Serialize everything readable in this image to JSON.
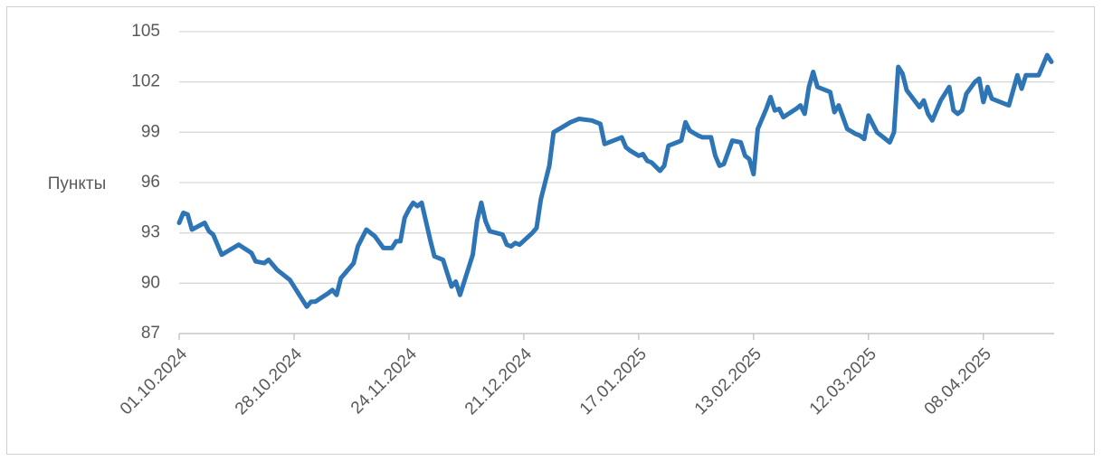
{
  "chart_data": {
    "type": "line",
    "y_label": "Пункты",
    "color": "#2e75b6",
    "grid": true,
    "x": [
      "01.10.2024",
      "02.10.2024",
      "03.10.2024",
      "04.10.2024",
      "07.10.2024",
      "08.10.2024",
      "09.10.2024",
      "11.10.2024",
      "15.10.2024",
      "18.10.2024",
      "19.10.2024",
      "21.10.2024",
      "22.10.2024",
      "24.10.2024",
      "25.10.2024",
      "27.10.2024",
      "29.10.2024",
      "31.10.2024",
      "01.11.2024",
      "02.11.2024",
      "05.11.2024",
      "06.11.2024",
      "07.11.2024",
      "08.11.2024",
      "11.11.2024",
      "12.11.2024",
      "14.11.2024",
      "16.11.2024",
      "18.11.2024",
      "20.11.2024",
      "21.11.2024",
      "22.11.2024",
      "23.11.2024",
      "24.11.2024",
      "25.11.2024",
      "26.11.2024",
      "27.11.2024",
      "29.11.2024",
      "30.11.2024",
      "02.12.2024",
      "04.12.2024",
      "05.12.2024",
      "06.12.2024",
      "09.12.2024",
      "10.12.2024",
      "11.12.2024",
      "12.12.2024",
      "13.12.2024",
      "16.12.2024",
      "17.12.2024",
      "18.12.2024",
      "19.12.2024",
      "20.12.2024",
      "23.12.2024",
      "24.12.2024",
      "25.12.2024",
      "27.12.2024",
      "28.12.2024",
      "30.12.2024",
      "01.01.2025",
      "03.01.2025",
      "06.01.2025",
      "08.01.2025",
      "09.01.2025",
      "12.01.2025",
      "13.01.2025",
      "14.01.2025",
      "15.01.2025",
      "17.01.2025",
      "18.01.2025",
      "19.01.2025",
      "20.01.2025",
      "22.01.2025",
      "23.01.2025",
      "24.01.2025",
      "26.01.2025",
      "27.01.2025",
      "28.01.2025",
      "29.01.2025",
      "31.01.2025",
      "01.02.2025",
      "03.02.2025",
      "04.02.2025",
      "05.02.2025",
      "06.02.2025",
      "08.02.2025",
      "10.02.2025",
      "11.02.2025",
      "12.02.2025",
      "13.02.2025",
      "14.02.2025",
      "16.02.2025",
      "17.02.2025",
      "18.02.2025",
      "19.02.2025",
      "20.02.2025",
      "23.02.2025",
      "24.02.2025",
      "25.02.2025",
      "26.02.2025",
      "27.02.2025",
      "28.02.2025",
      "03.03.2025",
      "04.03.2025",
      "05.03.2025",
      "07.03.2025",
      "09.03.2025",
      "10.03.2025",
      "11.03.2025",
      "12.03.2025",
      "14.03.2025",
      "17.03.2025",
      "18.03.2025",
      "19.03.2025",
      "20.03.2025",
      "21.03.2025",
      "24.03.2025",
      "25.03.2025",
      "26.03.2025",
      "27.03.2025",
      "29.03.2025",
      "31.03.2025",
      "01.04.2025",
      "02.04.2025",
      "03.04.2025",
      "04.04.2025",
      "06.04.2025",
      "07.04.2025",
      "08.04.2025",
      "09.04.2025",
      "10.04.2025",
      "13.04.2025",
      "14.04.2025",
      "16.04.2025",
      "17.04.2025",
      "18.04.2025",
      "21.04.2025",
      "22.04.2025",
      "23.04.2025",
      "24.04.2025"
    ],
    "values": [
      93.6,
      94.2,
      94.1,
      93.2,
      93.6,
      93.1,
      92.9,
      91.7,
      92.3,
      91.8,
      91.3,
      91.2,
      91.4,
      90.8,
      90.6,
      90.2,
      89.4,
      88.6,
      88.9,
      88.9,
      89.4,
      89.6,
      89.3,
      90.3,
      91.2,
      92.2,
      93.2,
      92.8,
      92.1,
      92.1,
      92.5,
      92.5,
      93.9,
      94.4,
      94.8,
      94.6,
      94.8,
      92.6,
      91.6,
      91.4,
      89.8,
      90.1,
      89.3,
      91.7,
      93.7,
      94.8,
      93.7,
      93.1,
      92.9,
      92.3,
      92.2,
      92.4,
      92.3,
      93.0,
      93.3,
      95.0,
      97.0,
      99.0,
      99.3,
      99.6,
      99.8,
      99.7,
      99.5,
      98.3,
      98.6,
      98.7,
      98.1,
      97.9,
      97.6,
      97.7,
      97.3,
      97.2,
      96.7,
      97.0,
      98.2,
      98.4,
      98.5,
      99.6,
      99.1,
      98.8,
      98.7,
      98.7,
      97.6,
      97.0,
      97.1,
      98.5,
      98.4,
      97.6,
      97.4,
      96.5,
      99.2,
      100.4,
      101.1,
      100.3,
      100.4,
      99.9,
      100.4,
      100.6,
      100.1,
      101.7,
      102.6,
      101.7,
      101.4,
      100.2,
      100.6,
      99.2,
      98.9,
      98.8,
      98.6,
      100.0,
      99.0,
      98.4,
      99.0,
      102.9,
      102.5,
      101.5,
      100.5,
      100.9,
      100.1,
      99.7,
      100.9,
      101.7,
      100.3,
      100.1,
      100.3,
      101.3,
      102.0,
      102.2,
      100.8,
      101.7,
      101.0,
      100.7,
      100.6,
      102.4,
      101.6,
      102.4,
      102.4,
      103.0,
      103.6,
      103.2
    ],
    "xlim": [
      "01.10.2024",
      "24.04.2025"
    ],
    "xticks": [
      "01.10.2024",
      "28.10.2024",
      "24.11.2024",
      "21.12.2024",
      "17.01.2025",
      "13.02.2025",
      "12.03.2025",
      "08.04.2025"
    ],
    "ylim": [
      87,
      105
    ],
    "yticks": [
      87,
      90,
      93,
      96,
      99,
      102,
      105
    ]
  }
}
